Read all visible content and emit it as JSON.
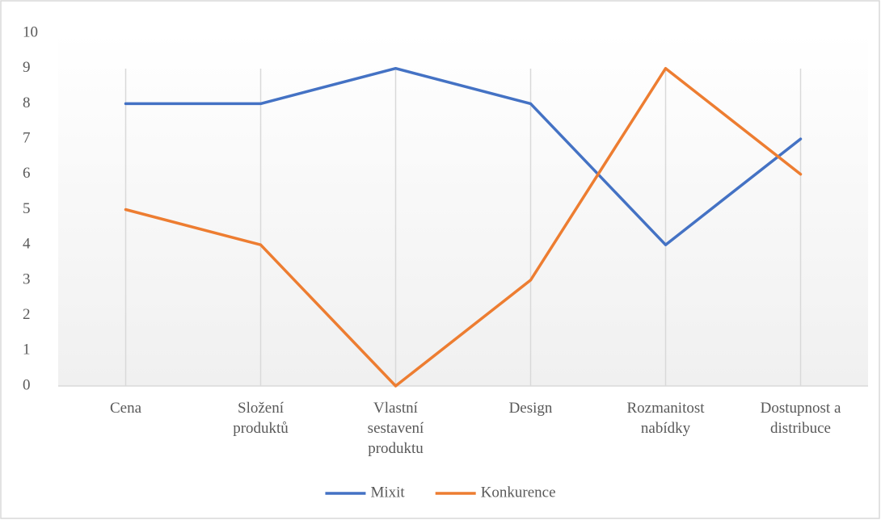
{
  "chart_data": {
    "type": "line",
    "categories": [
      "Cena",
      "Složení produktů",
      "Vlastní sestavení produktu",
      "Design",
      "Rozmanitost nabídky",
      "Dostupnost a distribuce"
    ],
    "series": [
      {
        "name": "Mixit",
        "color": "#4472c4",
        "values": [
          8,
          8,
          9,
          8,
          4,
          7
        ]
      },
      {
        "name": "Konkurence",
        "color": "#ed7d31",
        "values": [
          5,
          4,
          0,
          3,
          9,
          6
        ]
      }
    ],
    "ylim": [
      0,
      10
    ],
    "yticks": [
      0,
      1,
      2,
      3,
      4,
      5,
      6,
      7,
      8,
      9,
      10
    ],
    "grid": "x",
    "legend": "bottom"
  }
}
